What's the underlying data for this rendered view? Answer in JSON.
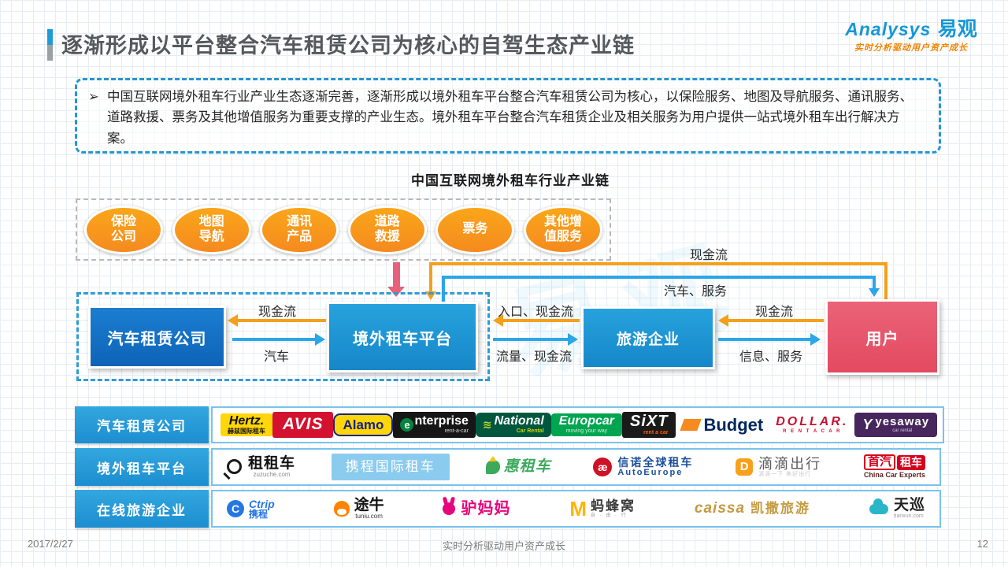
{
  "header": {
    "title": "逐渐形成以平台整合汽车租赁公司为核心的自驾生态产业链",
    "brand_en": "Analysys",
    "brand_cn": "易观",
    "brand_tagline": "实时分析驱动用户资产成长"
  },
  "summary": {
    "bullet": "➢",
    "text": "中国互联网境外租车行业产业生态逐渐完善，逐渐形成以境外租车平台整合汽车租赁公司为核心，以保险服务、地图及导航服务、通讯服务、道路救援、票务及其他增值服务为重要支撑的产业生态。境外租车平台整合汽车租赁企业及相关服务为用户提供一站式境外租车出行解决方案。"
  },
  "diagram": {
    "title": "中国互联网境外租车行业产业链",
    "support_services": [
      "保险\n公司",
      "地图\n导航",
      "通讯\n产品",
      "道路\n救援",
      "票务",
      "其他增\n值服务"
    ],
    "nodes": {
      "rental": "汽车租赁公司",
      "platform": "境外租车平台",
      "travel": "旅游企业",
      "user": "用户"
    },
    "flows": {
      "user_to_platform_cash": "现金流",
      "platform_to_user_service": "汽车、服务",
      "platform_to_rental_cash": "现金流",
      "rental_to_platform_car": "汽车",
      "travel_to_platform": "入口、现金流",
      "platform_to_travel": "流量、现金流",
      "user_to_travel_cash": "现金流",
      "travel_to_user": "信息、服务"
    },
    "watermark": "易观"
  },
  "logo_rows": [
    {
      "label": "汽车租赁公司",
      "logos": [
        {
          "id": "hertz",
          "main": "Hertz.",
          "sub": "赫兹国际租车",
          "bg": "#FFD60A",
          "fg": "#111111",
          "subFg": "#111111"
        },
        {
          "id": "avis",
          "main": "AVIS",
          "bg": "#D4112E",
          "fg": "#FFFFFF"
        },
        {
          "id": "alamo",
          "main": "Alamo",
          "bg": "#FFD60A",
          "fg": "#16247E"
        },
        {
          "id": "enterprise",
          "icon": "e",
          "main": "nterprise",
          "sub": "rent-a-car",
          "bg": "#161616",
          "fg": "#FFFFFF",
          "subFg": "#DDDDDD"
        },
        {
          "id": "national",
          "icon": "≋",
          "main": "National",
          "sub": "Car Rental",
          "bg": "#01573E",
          "fg": "#FFFFFF",
          "subFg": "#C8D400"
        },
        {
          "id": "europcar",
          "main": "Europcar",
          "sub": "moving your way",
          "bg": "#00A550",
          "fg": "#FFFFFF",
          "subFg": "#CFEFDC"
        },
        {
          "id": "sixt",
          "main": "SiXT",
          "sub": "rent a car",
          "bg": "#1A1A1A",
          "fg": "#FFFFFF",
          "subFg": "#FF5F00"
        },
        {
          "id": "budget",
          "icon": true,
          "main": "Budget",
          "bg": "#FFFFFF",
          "fg": "#00285F"
        },
        {
          "id": "dollar",
          "main": "DOLLAR.",
          "sub": "R E N T  A  C A R",
          "bg": "#FFFFFF",
          "fg": "#C8102E",
          "subFg": "#C8102E"
        },
        {
          "id": "yesaway",
          "icon": "Y",
          "main": "yesaway",
          "sub": "car rental",
          "bg": "#46265C",
          "fg": "#FFFFFF",
          "subFg": "#D8CCE2"
        }
      ]
    },
    {
      "label": "境外租车平台",
      "logos": [
        {
          "id": "zuzuche",
          "icon": true,
          "main": "租租车",
          "sub": "zuzuche.com",
          "fg": "#111111",
          "subFg": "#8A8A8A"
        },
        {
          "id": "ctrip-intl",
          "main": "携程国际租车",
          "bg": "#8BCBEE",
          "fg": "#FFFFFF"
        },
        {
          "id": "huizuche",
          "icon": true,
          "main": "惠租车",
          "fg": "#3BAA5C"
        },
        {
          "id": "autoeurope",
          "icon": "æ",
          "main": "信诺全球租车",
          "sub": "AutoEurope",
          "fg": "#1B4E9B",
          "subFg": "#1B4E9B"
        },
        {
          "id": "didi",
          "icon": "D",
          "main": "滴滴出行",
          "sub": "滴滴一下 美好出行",
          "fg": "#5A5A5A",
          "subFg": "#C9C9C9"
        },
        {
          "id": "shouqi",
          "main": "首汽",
          "main2": "租车",
          "sub": "China Car Experts",
          "fg": "#D6001C",
          "subFg": "#5B1F1F"
        }
      ]
    },
    {
      "label": "在线旅游企业",
      "logos": [
        {
          "id": "ctrip",
          "icon": "C",
          "main": "Ctrip",
          "sub": "携程",
          "fg": "#2577E3",
          "subFg": "#2577E3"
        },
        {
          "id": "tuniu",
          "icon": true,
          "main": "途牛",
          "sub": "tuniu.com",
          "fg": "#111111",
          "subFg": "#333333"
        },
        {
          "id": "lvmama",
          "icon": true,
          "main": "驴妈妈",
          "fg": "#E6067C"
        },
        {
          "id": "mafengwo",
          "icon": "M",
          "main": "蚂蜂窝",
          "sub": "自 · 由 · 行",
          "fg": "#3C3C3C",
          "subFg": "#9B9B9B"
        },
        {
          "id": "caissa",
          "main": "caissa",
          "main2": "凯撒旅游",
          "fg": "#C49A3F"
        },
        {
          "id": "tianxun",
          "icon": true,
          "main": "天巡",
          "sub": "tianxun.com",
          "fg": "#222222",
          "subFg": "#9B9B9B"
        }
      ]
    }
  ],
  "footer": {
    "date": "2017/2/27",
    "center": "实时分析驱动用户资产成长",
    "page": "12"
  },
  "colors": {
    "accent_blue": "#1E9CD7",
    "flow_orange": "#F5A01A",
    "flow_blue": "#2BA6E8",
    "flow_pink": "#E8617A",
    "node_dark_blue": "#1272C6",
    "node_blue": "#1E9CD7",
    "node_pink": "#E8596B",
    "ellipse_orange": "#F7931E",
    "brand_blue": "#1697D6",
    "brand_orange": "#F08300"
  }
}
